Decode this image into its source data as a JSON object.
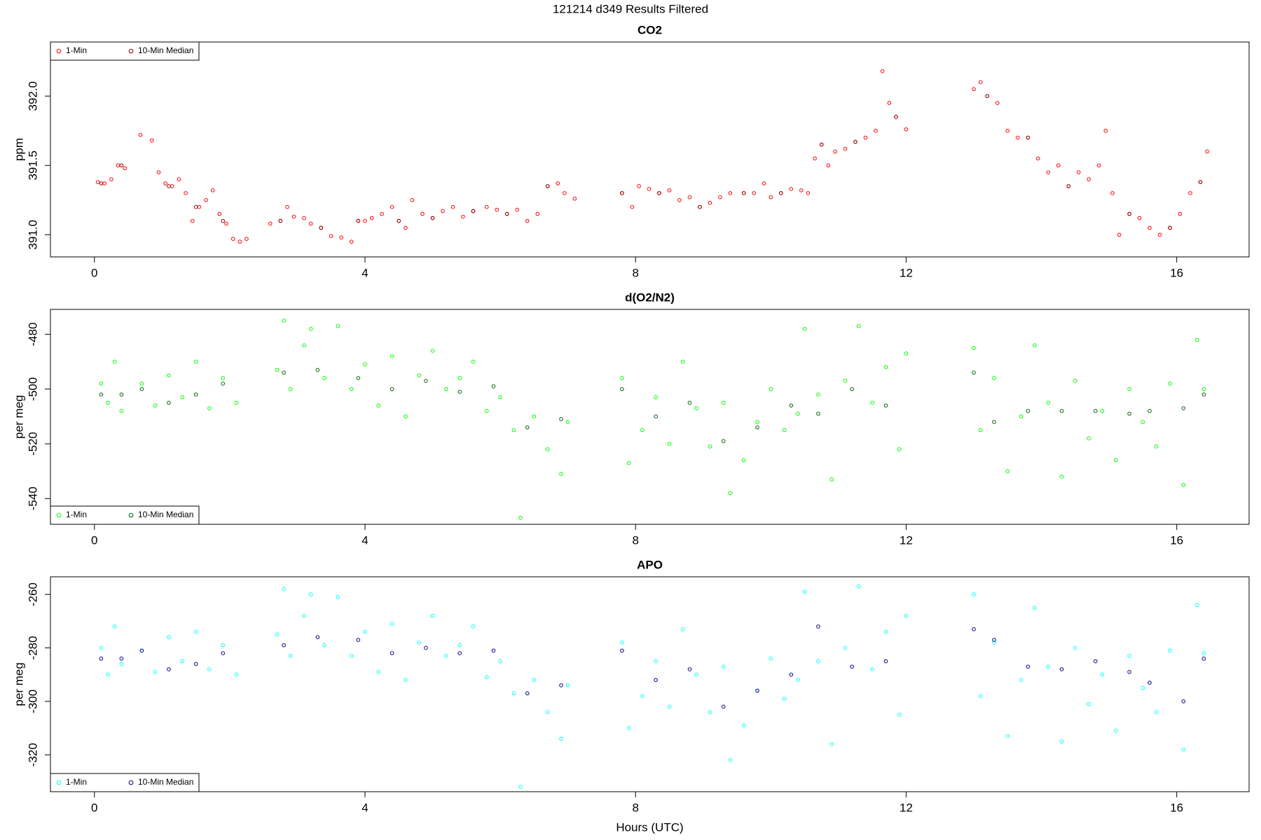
{
  "title": "121214   d349   Results Filtered",
  "chart_data": [
    {
      "type": "scatter",
      "title": "CO2",
      "y_label": "ppm",
      "legend": "topleft",
      "xlim": [
        -0.65,
        17.07
      ],
      "xticks": [
        0,
        4,
        8,
        12,
        16
      ],
      "ylim": [
        390.84,
        392.39
      ],
      "yticks": [
        {
          "value": 391,
          "label": "391.0"
        },
        {
          "value": 391.5,
          "label": "391.5"
        },
        {
          "value": 392,
          "label": "392.0"
        }
      ],
      "series": [
        {
          "name": "1-Min",
          "color": "#ff0000",
          "x": [
            0.05,
            0.15,
            0.25,
            0.35,
            0.45,
            0.68,
            0.85,
            0.95,
            1.05,
            1.15,
            1.25,
            1.35,
            1.45,
            1.55,
            1.65,
            1.75,
            1.85,
            1.95,
            2.05,
            2.15,
            2.25,
            2.6,
            2.75,
            2.85,
            2.95,
            3.1,
            3.2,
            3.35,
            3.5,
            3.65,
            3.8,
            3.9,
            4.0,
            4.1,
            4.25,
            4.4,
            4.5,
            4.6,
            4.7,
            4.85,
            5.0,
            5.15,
            5.3,
            5.45,
            5.6,
            5.8,
            5.95,
            6.1,
            6.25,
            6.4,
            6.55,
            6.7,
            6.85,
            6.95,
            7.1,
            7.8,
            7.95,
            8.05,
            8.2,
            8.35,
            8.5,
            8.65,
            8.8,
            8.95,
            9.1,
            9.25,
            9.4,
            9.6,
            9.75,
            9.9,
            10.0,
            10.15,
            10.3,
            10.45,
            10.55,
            10.65,
            10.75,
            10.85,
            10.95,
            11.1,
            11.25,
            11.4,
            11.55,
            11.65,
            11.75,
            11.85,
            12.0,
            13.0,
            13.1,
            13.2,
            13.35,
            13.5,
            13.65,
            13.8,
            13.95,
            14.1,
            14.25,
            14.4,
            14.55,
            14.7,
            14.85,
            14.95,
            15.05,
            15.15,
            15.3,
            15.45,
            15.6,
            15.75,
            15.9,
            16.05,
            16.2,
            16.35,
            16.45
          ],
          "values": [
            391.38,
            391.37,
            391.4,
            391.5,
            391.48,
            391.72,
            391.68,
            391.45,
            391.37,
            391.35,
            391.4,
            391.3,
            391.1,
            391.2,
            391.25,
            391.32,
            391.15,
            391.08,
            390.97,
            390.95,
            390.97,
            391.08,
            391.1,
            391.2,
            391.13,
            391.12,
            391.08,
            391.05,
            390.99,
            390.98,
            390.95,
            391.1,
            391.1,
            391.12,
            391.15,
            391.2,
            391.1,
            391.05,
            391.25,
            391.15,
            391.12,
            391.17,
            391.2,
            391.13,
            391.17,
            391.2,
            391.18,
            391.15,
            391.18,
            391.1,
            391.15,
            391.35,
            391.37,
            391.3,
            391.26,
            391.3,
            391.2,
            391.35,
            391.33,
            391.3,
            391.32,
            391.25,
            391.27,
            391.2,
            391.23,
            391.27,
            391.3,
            391.3,
            391.3,
            391.37,
            391.27,
            391.3,
            391.33,
            391.32,
            391.3,
            391.55,
            391.65,
            391.5,
            391.6,
            391.62,
            391.67,
            391.7,
            391.75,
            392.18,
            391.95,
            391.85,
            391.76,
            392.05,
            392.1,
            392.0,
            391.95,
            391.75,
            391.7,
            391.7,
            391.55,
            391.45,
            391.5,
            391.35,
            391.45,
            391.4,
            391.5,
            391.75,
            391.3,
            391.0,
            391.15,
            391.12,
            391.05,
            391.0,
            391.05,
            391.15,
            391.3,
            391.38,
            391.6
          ]
        },
        {
          "name": "10-Min Median",
          "color": "#8b0000",
          "x": [
            0.1,
            0.4,
            1.1,
            1.5,
            1.9,
            2.75,
            3.35,
            3.9,
            4.5,
            5.0,
            5.6,
            6.1,
            6.7,
            7.8,
            8.35,
            8.95,
            9.6,
            10.15,
            10.75,
            11.25,
            11.85,
            13.2,
            13.8,
            14.4,
            15.3,
            15.9,
            16.35
          ],
          "values": [
            391.37,
            391.5,
            391.35,
            391.2,
            391.1,
            391.1,
            391.05,
            391.1,
            391.1,
            391.12,
            391.17,
            391.15,
            391.35,
            391.3,
            391.3,
            391.2,
            391.3,
            391.3,
            391.65,
            391.67,
            391.85,
            392.0,
            391.7,
            391.35,
            391.15,
            391.05,
            391.38
          ]
        }
      ]
    },
    {
      "type": "scatter",
      "title": "d(O2/N2)",
      "y_label": "per meg",
      "legend": "bottomleft",
      "xlim": [
        -0.65,
        17.07
      ],
      "xticks": [
        0,
        4,
        8,
        12,
        16
      ],
      "ylim": [
        -549.4,
        -470.9
      ],
      "yticks": [
        -540,
        -520,
        -500,
        -480
      ],
      "series": [
        {
          "name": "1-Min",
          "color": "#00ff00",
          "x": [
            0.1,
            0.2,
            0.3,
            0.4,
            0.7,
            0.9,
            1.1,
            1.3,
            1.5,
            1.7,
            1.9,
            2.1,
            2.7,
            2.8,
            2.9,
            3.1,
            3.2,
            3.4,
            3.6,
            3.8,
            4.0,
            4.2,
            4.4,
            4.6,
            4.8,
            5.0,
            5.2,
            5.4,
            5.6,
            5.8,
            6.0,
            6.2,
            6.3,
            6.5,
            6.7,
            6.9,
            7.0,
            7.8,
            7.9,
            8.1,
            8.3,
            8.5,
            8.7,
            8.9,
            9.1,
            9.3,
            9.4,
            9.6,
            9.8,
            10.0,
            10.2,
            10.4,
            10.5,
            10.7,
            10.9,
            11.1,
            11.3,
            11.5,
            11.7,
            11.9,
            12.0,
            13.0,
            13.1,
            13.3,
            13.5,
            13.7,
            13.9,
            14.1,
            14.3,
            14.5,
            14.7,
            14.9,
            15.1,
            15.3,
            15.5,
            15.7,
            15.9,
            16.1,
            16.3,
            16.4
          ],
          "values": [
            -498,
            -505,
            -490,
            -508,
            -498,
            -506,
            -495,
            -503,
            -490,
            -507,
            -496,
            -505,
            -493,
            -475,
            -500,
            -484,
            -478,
            -496,
            -477,
            -500,
            -491,
            -506,
            -488,
            -510,
            -495,
            -486,
            -500,
            -496,
            -490,
            -508,
            -503,
            -515,
            -547,
            -510,
            -522,
            -531,
            -512,
            -496,
            -527,
            -515,
            -503,
            -520,
            -490,
            -507,
            -521,
            -505,
            -538,
            -526,
            -512,
            -500,
            -515,
            -509,
            -478,
            -502,
            -533,
            -497,
            -477,
            -505,
            -492,
            -522,
            -487,
            -485,
            -515,
            -496,
            -530,
            -510,
            -484,
            -505,
            -532,
            -497,
            -518,
            -508,
            -526,
            -500,
            -512,
            -521,
            -498,
            -535,
            -482,
            -500
          ]
        },
        {
          "name": "10-Min Median",
          "color": "#006400",
          "x": [
            0.1,
            0.4,
            0.7,
            1.1,
            1.5,
            1.9,
            2.8,
            3.3,
            3.9,
            4.4,
            4.9,
            5.4,
            5.9,
            6.4,
            6.9,
            7.8,
            8.3,
            8.8,
            9.3,
            9.8,
            10.3,
            10.7,
            11.2,
            11.7,
            13.0,
            13.3,
            13.8,
            14.3,
            14.8,
            15.3,
            15.6,
            16.1,
            16.4
          ],
          "values": [
            -502,
            -502,
            -500,
            -505,
            -502,
            -498,
            -494,
            -493,
            -496,
            -500,
            -497,
            -501,
            -499,
            -514,
            -511,
            -500,
            -510,
            -505,
            -519,
            -514,
            -506,
            -509,
            -500,
            -506,
            -494,
            -512,
            -508,
            -508,
            -508,
            -509,
            -508,
            -507,
            -502
          ]
        }
      ]
    },
    {
      "type": "scatter",
      "title": "APO",
      "y_label": "per meg",
      "x_label": "Hours (UTC)",
      "legend": "bottomleft",
      "xlim": [
        -0.65,
        17.07
      ],
      "xticks": [
        0,
        4,
        8,
        12,
        16
      ],
      "ylim": [
        -333.8,
        -253.4
      ],
      "yticks": [
        -320,
        -300,
        -280,
        -260
      ],
      "series": [
        {
          "name": "1-Min",
          "color": "#00ffff",
          "x": [
            0.1,
            0.2,
            0.3,
            0.4,
            0.7,
            0.9,
            1.1,
            1.3,
            1.5,
            1.7,
            1.9,
            2.1,
            2.7,
            2.8,
            2.9,
            3.1,
            3.2,
            3.4,
            3.6,
            3.8,
            4.0,
            4.2,
            4.4,
            4.6,
            4.8,
            5.0,
            5.2,
            5.4,
            5.6,
            5.8,
            6.0,
            6.2,
            6.3,
            6.5,
            6.7,
            6.9,
            7.0,
            7.8,
            7.9,
            8.1,
            8.3,
            8.5,
            8.7,
            8.9,
            9.1,
            9.3,
            9.4,
            9.6,
            9.8,
            10.0,
            10.2,
            10.4,
            10.5,
            10.7,
            10.9,
            11.1,
            11.3,
            11.5,
            11.7,
            11.9,
            12.0,
            13.0,
            13.1,
            13.3,
            13.5,
            13.7,
            13.9,
            14.1,
            14.3,
            14.5,
            14.7,
            14.9,
            15.1,
            15.3,
            15.5,
            15.7,
            15.9,
            16.1,
            16.3,
            16.4
          ],
          "values": [
            -280,
            -290,
            -272,
            -286,
            -281,
            -289,
            -276,
            -285,
            -274,
            -288,
            -279,
            -290,
            -275,
            -258,
            -283,
            -268,
            -260,
            -279,
            -261,
            -283,
            -274,
            -289,
            -271,
            -292,
            -278,
            -268,
            -283,
            -279,
            -272,
            -291,
            -285,
            -297,
            -332,
            -292,
            -304,
            -314,
            -294,
            -278,
            -310,
            -298,
            -285,
            -302,
            -273,
            -290,
            -304,
            -287,
            -322,
            -309,
            -296,
            -284,
            -299,
            -292,
            -259,
            -285,
            -316,
            -280,
            -257,
            -288,
            -274,
            -305,
            -268,
            -260,
            -298,
            -278,
            -313,
            -292,
            -265,
            -287,
            -315,
            -280,
            -301,
            -290,
            -311,
            -283,
            -295,
            -304,
            -281,
            -318,
            -264,
            -282
          ]
        },
        {
          "name": "10-Min Median",
          "color": "#00008b",
          "x": [
            0.1,
            0.4,
            0.7,
            1.1,
            1.5,
            1.9,
            2.8,
            3.3,
            3.9,
            4.4,
            4.9,
            5.4,
            5.9,
            6.4,
            6.9,
            7.8,
            8.3,
            8.8,
            9.3,
            9.8,
            10.3,
            10.7,
            11.2,
            11.7,
            13.0,
            13.3,
            13.8,
            14.3,
            14.8,
            15.3,
            15.6,
            16.1,
            16.4
          ],
          "values": [
            -284,
            -284,
            -281,
            -288,
            -286,
            -282,
            -279,
            -276,
            -277,
            -282,
            -280,
            -282,
            -281,
            -297,
            -294,
            -281,
            -292,
            -288,
            -302,
            -296,
            -290,
            -272,
            -287,
            -285,
            -273,
            -277,
            -287,
            -288,
            -285,
            -289,
            -293,
            -300,
            -284
          ]
        }
      ]
    }
  ]
}
